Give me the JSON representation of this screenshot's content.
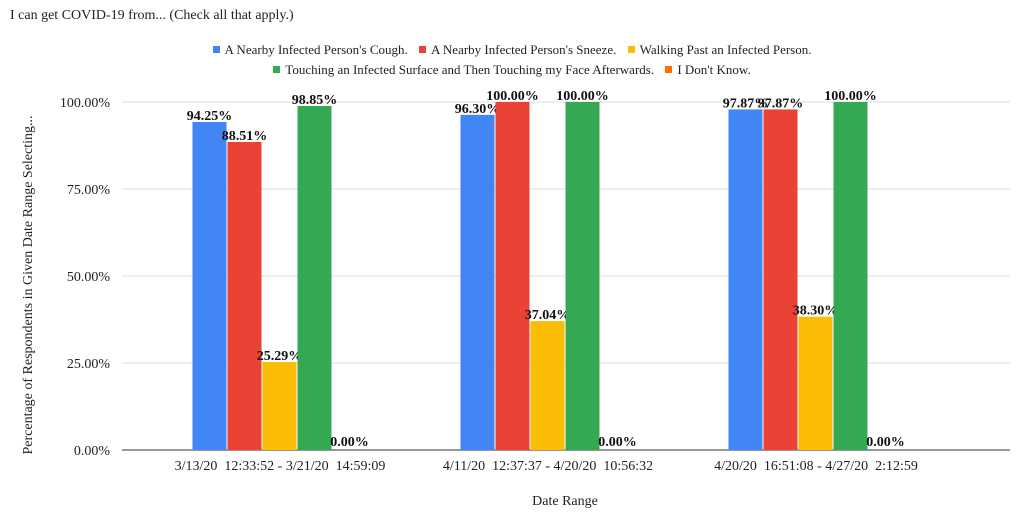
{
  "chart_data": {
    "type": "bar",
    "title": "I can get COVID-19 from... (Check all that apply.)",
    "xlabel": "Date Range",
    "ylabel": "Percentage of Respondents in Given Date Range Selecting...",
    "categories": [
      "3/13/20  12:33:52 - 3/21/20  14:59:09",
      "4/11/20  12:37:37 - 4/20/20  10:56:32",
      "4/20/20  16:51:08 - 4/27/20  2:12:59"
    ],
    "series": [
      {
        "name": "A Nearby Infected Person's Cough.",
        "color": "#4285f4",
        "values": [
          94.25,
          96.3,
          97.87
        ],
        "labels": [
          "94.25%",
          "96.30%",
          "97.87%"
        ]
      },
      {
        "name": "A Nearby Infected Person's Sneeze.",
        "color": "#ea4335",
        "values": [
          88.51,
          100.0,
          97.87
        ],
        "labels": [
          "88.51%",
          "100.00%",
          "97.87%"
        ]
      },
      {
        "name": "Walking Past an Infected Person.",
        "color": "#fbbc04",
        "values": [
          25.29,
          37.04,
          38.3
        ],
        "labels": [
          "25.29%",
          "37.04%",
          "38.30%"
        ]
      },
      {
        "name": "Touching an Infected Surface and Then Touching my Face Afterwards.",
        "color": "#34a853",
        "values": [
          98.85,
          100.0,
          100.0
        ],
        "labels": [
          "98.85%",
          "100.00%",
          "100.00%"
        ]
      },
      {
        "name": "I Don't Know.",
        "color": "#ff6d01",
        "values": [
          0,
          0,
          0
        ],
        "labels": [
          "0.00%",
          "0.00%",
          "0.00%"
        ]
      }
    ],
    "ylim": [
      0,
      100
    ],
    "yticks": [
      0,
      25,
      50,
      75,
      100
    ],
    "ytick_labels": [
      "0.00%",
      "25.00%",
      "50.00%",
      "75.00%",
      "100.00%"
    ],
    "grid": true,
    "legend_position": "top"
  }
}
